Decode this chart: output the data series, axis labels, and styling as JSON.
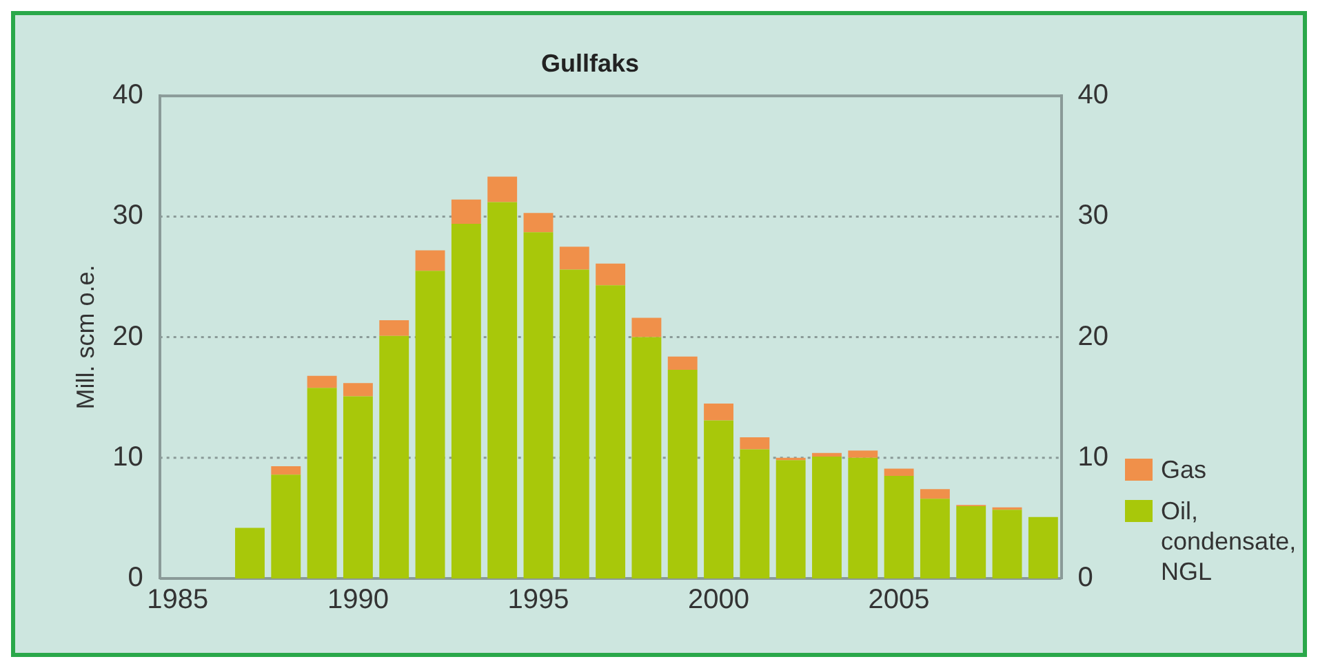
{
  "chart_data": {
    "type": "bar",
    "title": "Gullfaks",
    "ylabel": "Mill. scm o.e.",
    "stacked": true,
    "categories": [
      "1985",
      null,
      null,
      null,
      null,
      "1990",
      null,
      null,
      null,
      null,
      "1995",
      null,
      null,
      null,
      null,
      "2000",
      null,
      null,
      null,
      null,
      "2005",
      null,
      null,
      null,
      null
    ],
    "series": [
      {
        "name": "Oil, condensate, NGL",
        "color": "#a8c80a",
        "values": [
          null,
          null,
          4.2,
          8.6,
          15.8,
          15.1,
          20.1,
          25.5,
          29.4,
          31.2,
          28.7,
          25.6,
          24.3,
          20.0,
          17.3,
          13.1,
          10.7,
          9.8,
          10.1,
          10.0,
          8.5,
          6.6,
          6.0,
          5.7,
          5.1
        ]
      },
      {
        "name": "Gas",
        "color": "#f0904a",
        "values": [
          null,
          null,
          0,
          0.7,
          1.0,
          1.1,
          1.3,
          1.7,
          2.0,
          2.1,
          1.6,
          1.9,
          1.8,
          1.6,
          1.1,
          1.4,
          1.0,
          0.2,
          0.3,
          0.6,
          0.6,
          0.8,
          0.1,
          0.2,
          0
        ]
      }
    ],
    "ylim": [
      0,
      40
    ],
    "yticks": [
      0,
      10,
      20,
      30,
      40
    ],
    "y2lim": [
      0,
      40
    ],
    "y2ticks": [
      0,
      10,
      20,
      30,
      40
    ],
    "grid": "y",
    "legend": "right"
  }
}
